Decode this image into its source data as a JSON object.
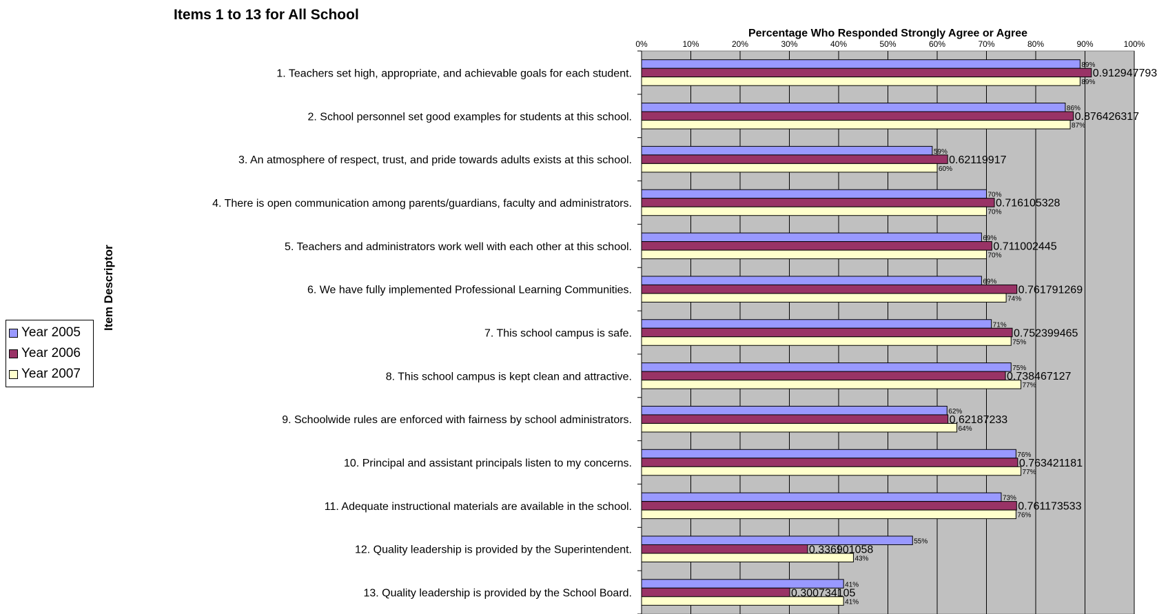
{
  "chart_data": {
    "type": "bar",
    "orientation": "horizontal",
    "title": "Items 1 to 13 for All School",
    "xlabel": "Percentage Who Responded Strongly Agree or Agree",
    "ylabel": "Item Descriptor",
    "xlim": [
      0,
      1
    ],
    "x_ticks": [
      "0%",
      "10%",
      "20%",
      "30%",
      "40%",
      "50%",
      "60%",
      "70%",
      "80%",
      "90%",
      "100%"
    ],
    "grid": true,
    "legend_position": "left",
    "categories": [
      "1.  Teachers set high, appropriate, and achievable goals for each student.",
      "2.  School personnel set good examples for students at this school.",
      "3.  An atmosphere of respect, trust, and pride towards adults exists at this school.",
      "4.  There is open communication among parents/guardians, faculty and administrators.",
      "5.  Teachers and administrators work well with each other at this school.",
      "6.  We have fully implemented Professional Learning Communities.",
      "7.  This school campus is safe.",
      "8.  This school campus is kept clean and attractive.",
      "9.  Schoolwide rules are enforced with fairness by school administrators.",
      "10.  Principal and assistant principals listen to my concerns.",
      "11.  Adequate instructional materials are available in the school.",
      "12.  Quality leadership is provided by the Superintendent.",
      "13.  Quality leadership is provided by the School Board."
    ],
    "series": [
      {
        "name": "Year 2005",
        "color": "#9999ff",
        "values": [
          0.89,
          0.86,
          0.59,
          0.7,
          0.69,
          0.69,
          0.71,
          0.75,
          0.62,
          0.76,
          0.73,
          0.55,
          0.41
        ],
        "labels": [
          "89%",
          "86%",
          "59%",
          "70%",
          "69%",
          "69%",
          "71%",
          "75%",
          "62%",
          "76%",
          "73%",
          "55%",
          "41%"
        ]
      },
      {
        "name": "Year 2006",
        "color": "#993366",
        "values": [
          0.912947793,
          0.876426317,
          0.62119917,
          0.716105328,
          0.711002445,
          0.761791269,
          0.752399465,
          0.738467127,
          0.62187233,
          0.763421181,
          0.761173533,
          0.336901058,
          0.300734105
        ],
        "labels": [
          "0.912947793",
          "0.876426317",
          "0.62119917",
          "0.716105328",
          "0.711002445",
          "0.761791269",
          "0.752399465",
          "0.738467127",
          "0.62187233",
          "0.763421181",
          "0.761173533",
          "0.336901058",
          "0.300734105"
        ]
      },
      {
        "name": "Year 2007",
        "color": "#ffffcc",
        "values": [
          0.89,
          0.87,
          0.6,
          0.7,
          0.7,
          0.74,
          0.75,
          0.77,
          0.64,
          0.77,
          0.76,
          0.43,
          0.41
        ],
        "labels": [
          "89%",
          "87%",
          "60%",
          "70%",
          "70%",
          "74%",
          "75%",
          "77%",
          "64%",
          "77%",
          "76%",
          "43%",
          "41%"
        ]
      }
    ],
    "plot_area_color": "#c0c0c0"
  }
}
